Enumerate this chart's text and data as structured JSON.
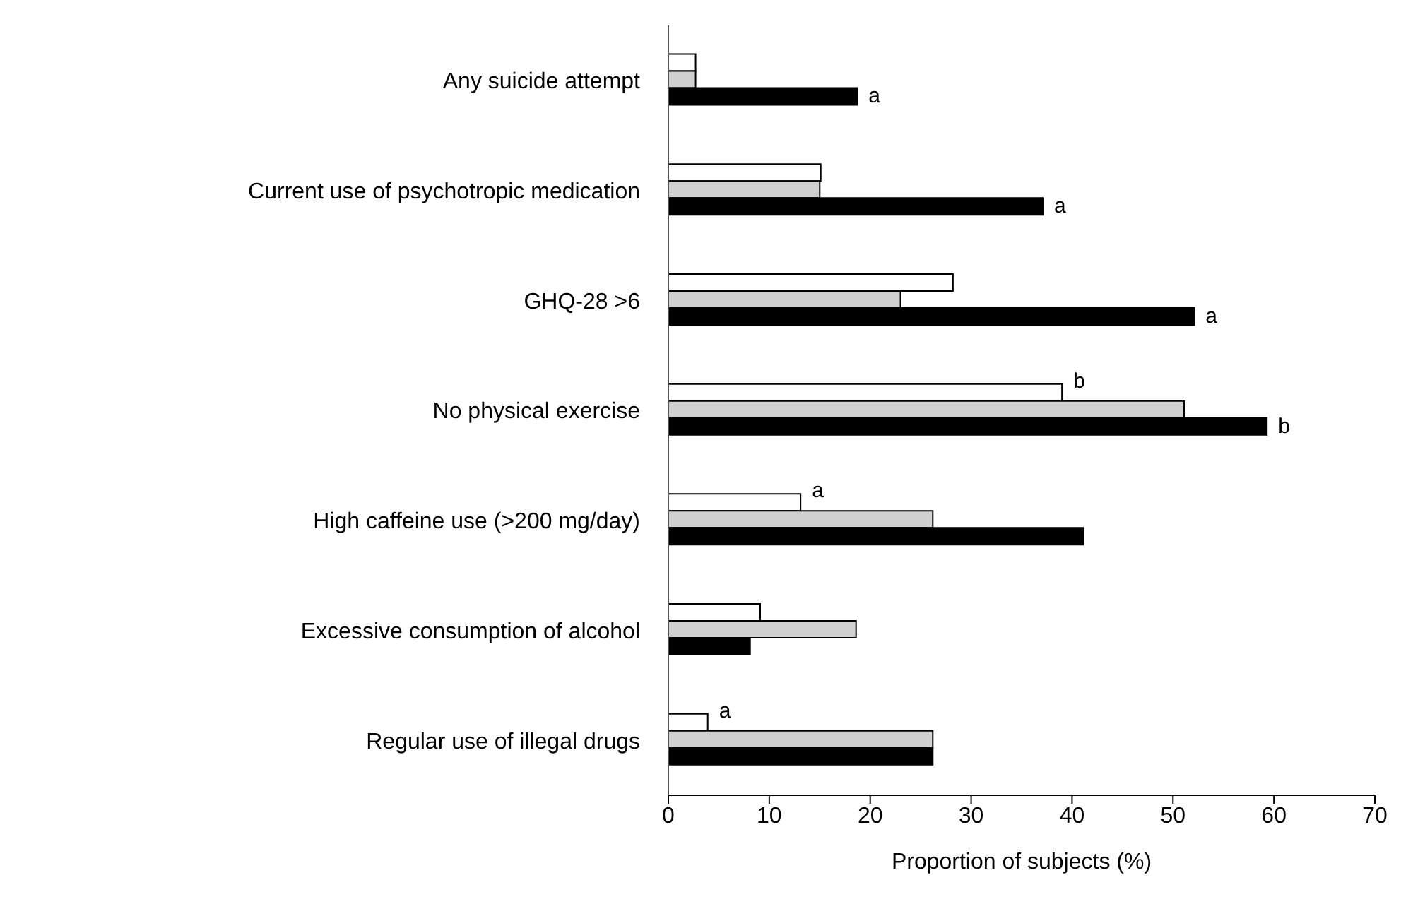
{
  "chart_data": {
    "type": "bar",
    "orientation": "horizontal",
    "xlabel": "Proportion of subjects (%)",
    "categories": [
      "Any suicide attempt",
      "Current use of psychotropic medication",
      "GHQ-28 >6",
      "No physical exercise",
      "High caffeine use (>200 mg/day)",
      "Excessive consumption of alcohol",
      "Regular use of illegal drugs"
    ],
    "series": [
      {
        "color": "#ffffff",
        "values": [
          2.7,
          15.1,
          28.2,
          39,
          13.1,
          9.1,
          3.9
        ]
      },
      {
        "color": "#d0d0d0",
        "values": [
          2.7,
          15,
          23,
          51.1,
          26.2,
          18.6,
          26.2
        ]
      },
      {
        "color": "#000000",
        "values": [
          18.7,
          37.1,
          52.1,
          59.3,
          41.1,
          8.1,
          26.2
        ]
      }
    ],
    "xlim": [
      0,
      70
    ],
    "xticks": [
      0,
      10,
      20,
      30,
      40,
      50,
      60,
      70
    ],
    "grid": false,
    "legend": false,
    "annotations": [
      {
        "text": "a",
        "x": 18.7,
        "y": "Any suicide attempt"
      },
      {
        "text": "a",
        "x": 37.1,
        "y": "Current use of psychotropic medication"
      },
      {
        "text": "a",
        "x": 52.1,
        "y": "GHQ-28 >6"
      },
      {
        "text": "b",
        "x": 39,
        "y": "No physical exercise"
      },
      {
        "text": "b",
        "x": 59.3,
        "y": "No physical exercise"
      },
      {
        "text": "a",
        "x": 13.1,
        "y": "High caffeine use (>200 mg/day)"
      },
      {
        "text": "a",
        "x": 3.9,
        "y": "Regular use of illegal drugs"
      }
    ]
  }
}
